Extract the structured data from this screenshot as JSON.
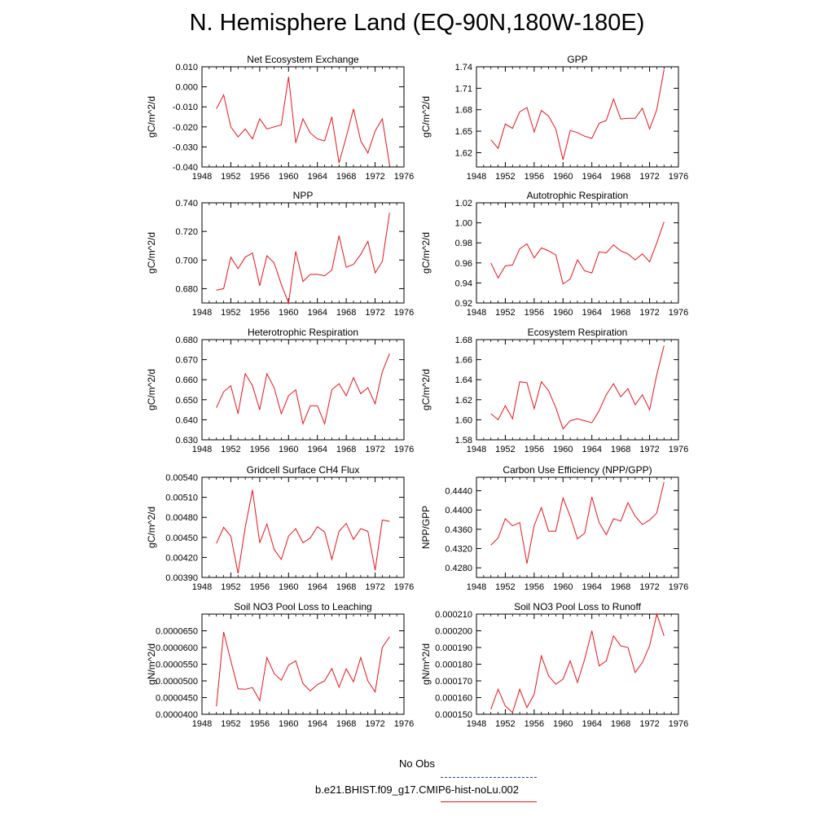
{
  "title": "N. Hemisphere Land (EQ-90N,180W-180E)",
  "colors": {
    "model": "#e8141b",
    "obs": "#2a3bbd",
    "axis": "#000000"
  },
  "legend": {
    "entries": [
      {
        "label": "No Obs",
        "color": "#2a3bbd",
        "style": "dashed"
      },
      {
        "label": "b.e21.BHIST.f09_g17.CMIP6-hist-noLu.002",
        "color": "#e8141b",
        "style": "solid"
      }
    ]
  },
  "chart_data": [
    {
      "type": "line",
      "title": "Net Ecosystem Exchange",
      "ylabel": "gC/m^2/d",
      "xlim": [
        1948,
        1976
      ],
      "ylim": [
        -0.04,
        0.01
      ],
      "xticks": [
        "1948",
        "1952",
        "1956",
        "1960",
        "1964",
        "1968",
        "1972",
        "1976"
      ],
      "yticks": [
        -0.04,
        -0.03,
        -0.02,
        -0.01,
        0.0,
        0.01
      ],
      "ytick_labels": [
        "-0.040",
        "-0.030",
        "-0.020",
        "-0.010",
        "0.000",
        "0.010"
      ],
      "series": [
        {
          "x": [
            1950,
            1951,
            1952,
            1953,
            1954,
            1955,
            1956,
            1957,
            1958,
            1959,
            1960,
            1961,
            1962,
            1963,
            1964,
            1965,
            1966,
            1967,
            1968,
            1969,
            1970,
            1971,
            1972,
            1973,
            1974
          ],
          "values": [
            -0.011,
            -0.004,
            -0.02,
            -0.025,
            -0.021,
            -0.026,
            -0.016,
            -0.021,
            -0.02,
            -0.019,
            0.005,
            -0.028,
            -0.016,
            -0.023,
            -0.026,
            -0.027,
            -0.015,
            -0.038,
            -0.025,
            -0.011,
            -0.027,
            -0.033,
            -0.022,
            -0.016,
            -0.039
          ]
        }
      ]
    },
    {
      "type": "line",
      "title": "GPP",
      "ylabel": "gC/m^2/d",
      "xlim": [
        1948,
        1976
      ],
      "ylim": [
        1.6,
        1.74
      ],
      "xticks": [
        "1948",
        "1952",
        "1956",
        "1960",
        "1964",
        "1968",
        "1972",
        "1976"
      ],
      "yticks": [
        1.62,
        1.65,
        1.68,
        1.71,
        1.74
      ],
      "ytick_labels": [
        "1.62",
        "1.65",
        "1.68",
        "1.71",
        "1.74"
      ],
      "series": [
        {
          "x": [
            1950,
            1951,
            1952,
            1953,
            1954,
            1955,
            1956,
            1957,
            1958,
            1959,
            1960,
            1961,
            1962,
            1963,
            1964,
            1965,
            1966,
            1967,
            1968,
            1969,
            1970,
            1971,
            1972,
            1973,
            1974
          ],
          "values": [
            1.638,
            1.626,
            1.66,
            1.654,
            1.677,
            1.683,
            1.649,
            1.679,
            1.671,
            1.653,
            1.61,
            1.651,
            1.648,
            1.643,
            1.64,
            1.661,
            1.665,
            1.695,
            1.667,
            1.668,
            1.668,
            1.682,
            1.653,
            1.68,
            1.736
          ]
        }
      ]
    },
    {
      "type": "line",
      "title": "NPP",
      "ylabel": "gC/m^2/d",
      "xlim": [
        1948,
        1976
      ],
      "ylim": [
        0.67,
        0.74
      ],
      "xticks": [
        "1948",
        "1952",
        "1956",
        "1960",
        "1964",
        "1968",
        "1972",
        "1976"
      ],
      "yticks": [
        0.68,
        0.7,
        0.72,
        0.74
      ],
      "ytick_labels": [
        "0.680",
        "0.700",
        "0.720",
        "0.740"
      ],
      "series": [
        {
          "x": [
            1950,
            1951,
            1952,
            1953,
            1954,
            1955,
            1956,
            1957,
            1958,
            1959,
            1960,
            1961,
            1962,
            1963,
            1964,
            1965,
            1966,
            1967,
            1968,
            1969,
            1970,
            1971,
            1972,
            1973,
            1974
          ],
          "values": [
            0.679,
            0.68,
            0.702,
            0.694,
            0.702,
            0.705,
            0.682,
            0.703,
            0.698,
            0.683,
            0.67,
            0.706,
            0.685,
            0.69,
            0.69,
            0.689,
            0.693,
            0.717,
            0.695,
            0.697,
            0.704,
            0.713,
            0.691,
            0.699,
            0.733
          ]
        }
      ]
    },
    {
      "type": "line",
      "title": "Autotrophic Respiration",
      "ylabel": "gC/m^2/d",
      "xlim": [
        1948,
        1976
      ],
      "ylim": [
        0.92,
        1.02
      ],
      "xticks": [
        "1948",
        "1952",
        "1956",
        "1960",
        "1964",
        "1968",
        "1972",
        "1976"
      ],
      "yticks": [
        0.92,
        0.94,
        0.96,
        0.98,
        1.0,
        1.02
      ],
      "ytick_labels": [
        "0.92",
        "0.94",
        "0.96",
        "0.98",
        "1.00",
        "1.02"
      ],
      "series": [
        {
          "x": [
            1950,
            1951,
            1952,
            1953,
            1954,
            1955,
            1956,
            1957,
            1958,
            1959,
            1960,
            1961,
            1962,
            1963,
            1964,
            1965,
            1966,
            1967,
            1968,
            1969,
            1970,
            1971,
            1972,
            1973,
            1974
          ],
          "values": [
            0.96,
            0.945,
            0.957,
            0.958,
            0.974,
            0.979,
            0.965,
            0.975,
            0.972,
            0.968,
            0.939,
            0.944,
            0.963,
            0.952,
            0.95,
            0.971,
            0.97,
            0.978,
            0.972,
            0.969,
            0.963,
            0.969,
            0.961,
            0.98,
            1.001
          ]
        }
      ]
    },
    {
      "type": "line",
      "title": "Heterotrophic Respiration",
      "ylabel": "gC/m^2/d",
      "xlim": [
        1948,
        1976
      ],
      "ylim": [
        0.63,
        0.68
      ],
      "xticks": [
        "1948",
        "1952",
        "1956",
        "1960",
        "1964",
        "1968",
        "1972",
        "1976"
      ],
      "yticks": [
        0.63,
        0.64,
        0.65,
        0.66,
        0.67,
        0.68
      ],
      "ytick_labels": [
        "0.630",
        "0.640",
        "0.650",
        "0.660",
        "0.670",
        "0.680"
      ],
      "series": [
        {
          "x": [
            1950,
            1951,
            1952,
            1953,
            1954,
            1955,
            1956,
            1957,
            1958,
            1959,
            1960,
            1961,
            1962,
            1963,
            1964,
            1965,
            1966,
            1967,
            1968,
            1969,
            1970,
            1971,
            1972,
            1973,
            1974
          ],
          "values": [
            0.646,
            0.654,
            0.657,
            0.643,
            0.663,
            0.657,
            0.645,
            0.663,
            0.656,
            0.643,
            0.652,
            0.655,
            0.638,
            0.647,
            0.647,
            0.638,
            0.655,
            0.658,
            0.652,
            0.661,
            0.653,
            0.656,
            0.648,
            0.664,
            0.673
          ]
        }
      ]
    },
    {
      "type": "line",
      "title": "Ecosystem Respiration",
      "ylabel": "gC/m^2/d",
      "xlim": [
        1948,
        1976
      ],
      "ylim": [
        1.58,
        1.68
      ],
      "xticks": [
        "1948",
        "1952",
        "1956",
        "1960",
        "1964",
        "1968",
        "1972",
        "1976"
      ],
      "yticks": [
        1.58,
        1.6,
        1.62,
        1.64,
        1.66,
        1.68
      ],
      "ytick_labels": [
        "1.58",
        "1.60",
        "1.62",
        "1.64",
        "1.66",
        "1.68"
      ],
      "series": [
        {
          "x": [
            1950,
            1951,
            1952,
            1953,
            1954,
            1955,
            1956,
            1957,
            1958,
            1959,
            1960,
            1961,
            1962,
            1963,
            1964,
            1965,
            1966,
            1967,
            1968,
            1969,
            1970,
            1971,
            1972,
            1973,
            1974
          ],
          "values": [
            1.606,
            1.6,
            1.614,
            1.601,
            1.638,
            1.637,
            1.611,
            1.638,
            1.629,
            1.612,
            1.591,
            1.599,
            1.601,
            1.599,
            1.597,
            1.609,
            1.625,
            1.636,
            1.623,
            1.631,
            1.615,
            1.625,
            1.61,
            1.645,
            1.674
          ]
        }
      ]
    },
    {
      "type": "line",
      "title": "Gridcell Surface CH4 Flux",
      "ylabel": "gC/m^2/d",
      "xlim": [
        1948,
        1976
      ],
      "ylim": [
        0.0039,
        0.0054
      ],
      "xticks": [
        "1948",
        "1952",
        "1956",
        "1960",
        "1964",
        "1968",
        "1972",
        "1976"
      ],
      "yticks": [
        0.0039,
        0.0042,
        0.0045,
        0.0048,
        0.0051,
        0.0054
      ],
      "ytick_labels": [
        "0.00390",
        "0.00420",
        "0.00450",
        "0.00480",
        "0.00510",
        "0.00540"
      ],
      "series": [
        {
          "x": [
            1950,
            1951,
            1952,
            1953,
            1954,
            1955,
            1956,
            1957,
            1958,
            1959,
            1960,
            1961,
            1962,
            1963,
            1964,
            1965,
            1966,
            1967,
            1968,
            1969,
            1970,
            1971,
            1972,
            1973,
            1974
          ],
          "values": [
            0.00441,
            0.00465,
            0.00452,
            0.00396,
            0.00465,
            0.00521,
            0.00442,
            0.0047,
            0.00432,
            0.00417,
            0.00452,
            0.00463,
            0.00442,
            0.00449,
            0.00466,
            0.00458,
            0.00417,
            0.00459,
            0.00471,
            0.00447,
            0.00463,
            0.00459,
            0.00401,
            0.00476,
            0.00474
          ]
        }
      ]
    },
    {
      "type": "line",
      "title": "Carbon Use Efficiency (NPP/GPP)",
      "ylabel": "NPP/GPP",
      "xlim": [
        1948,
        1976
      ],
      "ylim": [
        0.426,
        0.4468
      ],
      "xticks": [
        "1948",
        "1952",
        "1956",
        "1960",
        "1964",
        "1968",
        "1972",
        "1976"
      ],
      "yticks": [
        0.428,
        0.432,
        0.436,
        0.44,
        0.444
      ],
      "ytick_labels": [
        "0.4280",
        "0.4320",
        "0.4360",
        "0.4400",
        "0.4440"
      ],
      "series": [
        {
          "x": [
            1950,
            1951,
            1952,
            1953,
            1954,
            1955,
            1956,
            1957,
            1958,
            1959,
            1960,
            1961,
            1962,
            1963,
            1964,
            1965,
            1966,
            1967,
            1968,
            1969,
            1970,
            1971,
            1972,
            1973,
            1974
          ],
          "values": [
            0.4327,
            0.4342,
            0.4382,
            0.4367,
            0.4374,
            0.4289,
            0.4368,
            0.4405,
            0.4356,
            0.4356,
            0.4425,
            0.4387,
            0.434,
            0.4352,
            0.4427,
            0.4374,
            0.4349,
            0.4382,
            0.4377,
            0.4415,
            0.4387,
            0.437,
            0.4379,
            0.4394,
            0.4458
          ]
        }
      ]
    },
    {
      "type": "line",
      "title": "Soil NO3 Pool Loss to Leaching",
      "ylabel": "gN/m^2/d",
      "xlim": [
        1948,
        1976
      ],
      "ylim": [
        4e-05,
        7e-05
      ],
      "xticks": [
        "1948",
        "1952",
        "1956",
        "1960",
        "1964",
        "1968",
        "1972",
        "1976"
      ],
      "yticks": [
        4e-05,
        4.5e-05,
        5e-05,
        5.5e-05,
        6e-05,
        6.5e-05
      ],
      "ytick_labels": [
        "0.0000400",
        "0.0000450",
        "0.0000500",
        "0.0000550",
        "0.0000600",
        "0.0000650"
      ],
      "series": [
        {
          "x": [
            1950,
            1951,
            1952,
            1953,
            1954,
            1955,
            1956,
            1957,
            1958,
            1959,
            1960,
            1961,
            1962,
            1963,
            1964,
            1965,
            1966,
            1967,
            1968,
            1969,
            1970,
            1971,
            1972,
            1973,
            1974
          ],
          "values": [
            4.24e-05,
            6.46e-05,
            5.6e-05,
            4.76e-05,
            4.75e-05,
            4.8e-05,
            4.41e-05,
            5.7e-05,
            5.22e-05,
            5.02e-05,
            5.47e-05,
            5.6e-05,
            4.92e-05,
            4.7e-05,
            4.89e-05,
            5e-05,
            5.37e-05,
            4.81e-05,
            5.36e-05,
            4.97e-05,
            5.7e-05,
            5e-05,
            4.67e-05,
            6e-05,
            6.32e-05
          ]
        }
      ]
    },
    {
      "type": "line",
      "title": "Soil NO3 Pool Loss to Runoff",
      "ylabel": "gN/m^2/d",
      "xlim": [
        1948,
        1976
      ],
      "ylim": [
        0.00015,
        0.00021
      ],
      "xticks": [
        "1948",
        "1952",
        "1956",
        "1960",
        "1964",
        "1968",
        "1972",
        "1976"
      ],
      "yticks": [
        0.00015,
        0.00016,
        0.00017,
        0.00018,
        0.00019,
        0.0002,
        0.00021
      ],
      "ytick_labels": [
        "0.000150",
        "0.000160",
        "0.000170",
        "0.000180",
        "0.000190",
        "0.000200",
        "0.000210"
      ],
      "series": [
        {
          "x": [
            1950,
            1951,
            1952,
            1953,
            1954,
            1955,
            1956,
            1957,
            1958,
            1959,
            1960,
            1961,
            1962,
            1963,
            1964,
            1965,
            1966,
            1967,
            1968,
            1969,
            1970,
            1971,
            1972,
            1973,
            1974
          ],
          "values": [
            0.000153,
            0.000165,
            0.000155,
            0.000151,
            0.000165,
            0.000154,
            0.000162,
            0.000185,
            0.000173,
            0.000168,
            0.000171,
            0.000182,
            0.000169,
            0.000183,
            0.0002,
            0.000179,
            0.000182,
            0.000197,
            0.000191,
            0.00019,
            0.000175,
            0.000181,
            0.000191,
            0.00021,
            0.000197
          ]
        }
      ]
    }
  ]
}
